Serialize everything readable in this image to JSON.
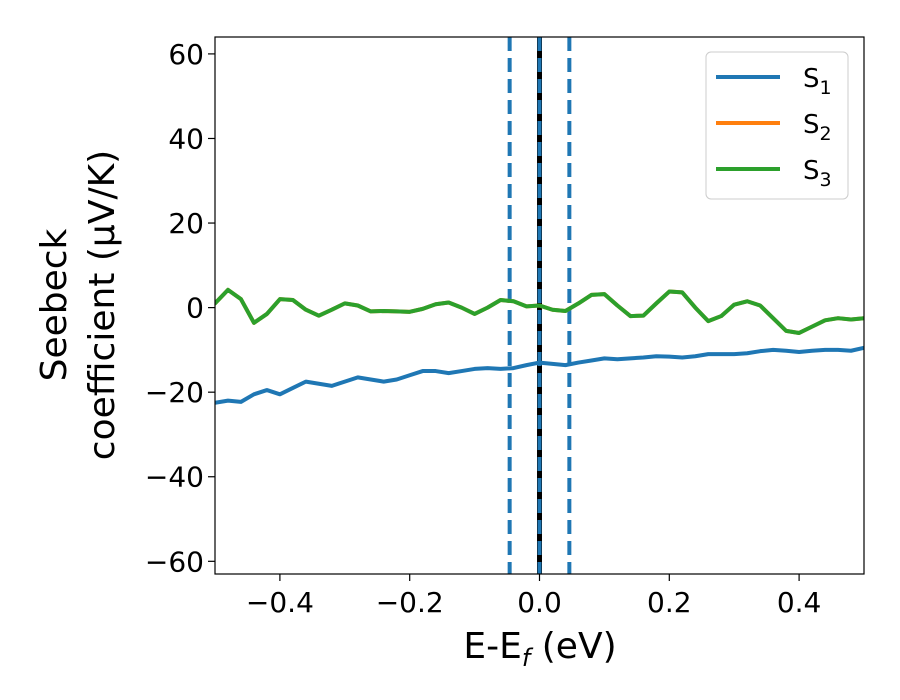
{
  "chart_data": {
    "type": "line",
    "xlabel": {
      "main": "E-E",
      "sub": "f",
      "unit": " (eV)"
    },
    "ylabel": {
      "line1": "Seebeck",
      "line2": "coefficient  (μV/K)"
    },
    "xlim": [
      -0.5,
      0.5
    ],
    "ylim": [
      -63,
      64
    ],
    "xticks": [
      -0.4,
      -0.2,
      0.0,
      0.2,
      0.4
    ],
    "xtick_labels": [
      "−0.4",
      "−0.2",
      "0.0",
      "0.2",
      "0.4"
    ],
    "yticks": [
      -60,
      -40,
      -20,
      0,
      20,
      40,
      60
    ],
    "ytick_labels": [
      "−60",
      "−40",
      "−20",
      "0",
      "20",
      "40",
      "60"
    ],
    "grid": false,
    "legend_position": "top-right",
    "vlines": [
      {
        "x": -0.046,
        "style": "dashed",
        "color": "#1f77b4"
      },
      {
        "x": 0.0,
        "style": "solid",
        "color": "#000000"
      },
      {
        "x": 0.0,
        "style": "dashed",
        "color": "#1f77b4"
      },
      {
        "x": 0.046,
        "style": "dashed",
        "color": "#1f77b4"
      }
    ],
    "series": [
      {
        "name": "S",
        "sub": "1",
        "color": "#1f77b4",
        "x": [
          -0.5,
          -0.48,
          -0.46,
          -0.44,
          -0.42,
          -0.4,
          -0.38,
          -0.36,
          -0.34,
          -0.32,
          -0.3,
          -0.28,
          -0.26,
          -0.24,
          -0.22,
          -0.2,
          -0.18,
          -0.16,
          -0.14,
          -0.12,
          -0.1,
          -0.08,
          -0.06,
          -0.04,
          -0.02,
          0.0,
          0.02,
          0.04,
          0.06,
          0.08,
          0.1,
          0.12,
          0.14,
          0.16,
          0.18,
          0.2,
          0.22,
          0.24,
          0.26,
          0.28,
          0.3,
          0.32,
          0.34,
          0.36,
          0.38,
          0.4,
          0.42,
          0.44,
          0.46,
          0.48,
          0.5
        ],
        "y": [
          -22.5,
          -22.0,
          -22.3,
          -20.5,
          -19.5,
          -20.5,
          -19.0,
          -17.5,
          -18.0,
          -18.5,
          -17.5,
          -16.5,
          -17.0,
          -17.5,
          -17.0,
          -16.0,
          -15.0,
          -15.0,
          -15.5,
          -15.0,
          -14.5,
          -14.3,
          -14.5,
          -14.3,
          -13.6,
          -13.0,
          -13.3,
          -13.6,
          -13.0,
          -12.5,
          -12.0,
          -12.2,
          -12.0,
          -11.8,
          -11.5,
          -11.6,
          -11.8,
          -11.5,
          -11.0,
          -11.0,
          -11.0,
          -10.8,
          -10.3,
          -10.0,
          -10.2,
          -10.5,
          -10.2,
          -10.0,
          -10.0,
          -10.2,
          -9.5
        ]
      },
      {
        "name": "S",
        "sub": "2",
        "color": "#ff7f0e",
        "x": [
          -0.5,
          -0.48,
          -0.46,
          -0.44,
          -0.42,
          -0.4,
          -0.38,
          -0.36,
          -0.34,
          -0.32,
          -0.3,
          -0.28,
          -0.26,
          -0.24,
          -0.22,
          -0.2,
          -0.18,
          -0.16,
          -0.14,
          -0.12,
          -0.1,
          -0.08,
          -0.06,
          -0.04,
          -0.02,
          0.0,
          0.02,
          0.04,
          0.06,
          0.08,
          0.1,
          0.12,
          0.14,
          0.16,
          0.18,
          0.2,
          0.22,
          0.24,
          0.26,
          0.28,
          0.3,
          0.32,
          0.34,
          0.36,
          0.38,
          0.4,
          0.42,
          0.44,
          0.46,
          0.48,
          0.5
        ],
        "y": [
          1.0,
          4.2,
          2.0,
          -3.6,
          -1.5,
          2.0,
          1.8,
          -0.5,
          -1.9,
          -0.5,
          1.0,
          0.5,
          -0.9,
          -0.8,
          -0.9,
          -1.0,
          -0.3,
          0.8,
          1.2,
          0.0,
          -1.5,
          0.0,
          1.8,
          1.5,
          0.3,
          0.5,
          -0.5,
          -0.8,
          1.0,
          3.0,
          3.2,
          0.5,
          -2.0,
          -1.9,
          1.0,
          3.8,
          3.6,
          0.0,
          -3.2,
          -2.0,
          0.7,
          1.5,
          0.5,
          -2.5,
          -5.5,
          -6.0,
          -4.5,
          -3.0,
          -2.5,
          -2.8,
          -2.5
        ]
      },
      {
        "name": "S",
        "sub": "3",
        "color": "#2ca02c",
        "x": [
          -0.5,
          -0.48,
          -0.46,
          -0.44,
          -0.42,
          -0.4,
          -0.38,
          -0.36,
          -0.34,
          -0.32,
          -0.3,
          -0.28,
          -0.26,
          -0.24,
          -0.22,
          -0.2,
          -0.18,
          -0.16,
          -0.14,
          -0.12,
          -0.1,
          -0.08,
          -0.06,
          -0.04,
          -0.02,
          0.0,
          0.02,
          0.04,
          0.06,
          0.08,
          0.1,
          0.12,
          0.14,
          0.16,
          0.18,
          0.2,
          0.22,
          0.24,
          0.26,
          0.28,
          0.3,
          0.32,
          0.34,
          0.36,
          0.38,
          0.4,
          0.42,
          0.44,
          0.46,
          0.48,
          0.5
        ],
        "y": [
          1.0,
          4.2,
          2.0,
          -3.6,
          -1.5,
          2.0,
          1.8,
          -0.5,
          -1.9,
          -0.5,
          1.0,
          0.5,
          -0.9,
          -0.8,
          -0.9,
          -1.0,
          -0.3,
          0.8,
          1.2,
          0.0,
          -1.5,
          0.0,
          1.8,
          1.5,
          0.3,
          0.5,
          -0.5,
          -0.8,
          1.0,
          3.0,
          3.2,
          0.5,
          -2.0,
          -1.9,
          1.0,
          3.8,
          3.6,
          0.0,
          -3.2,
          -2.0,
          0.7,
          1.5,
          0.5,
          -2.5,
          -5.5,
          -6.0,
          -4.5,
          -3.0,
          -2.5,
          -2.8,
          -2.5
        ]
      }
    ]
  }
}
